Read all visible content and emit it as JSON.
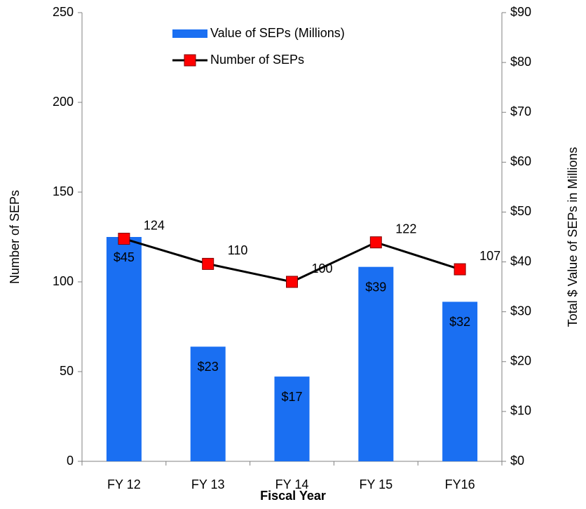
{
  "chart_data": {
    "type": "bar_line",
    "categories": [
      "FY 12",
      "FY 13",
      "FY 14",
      "FY 15",
      "FY16"
    ],
    "x_label": "Fiscal Year",
    "y_label": "Number of SEPs",
    "y2_label": "Total $ Value of SEPs in Millions",
    "series": [
      {
        "name": "Value of SEPs (Millions)",
        "type": "bar",
        "axis": "y2",
        "color": "#1a6ff2",
        "values": [
          45,
          23,
          17,
          39,
          32
        ],
        "value_labels": [
          "$45",
          "$23",
          "$17",
          "$39",
          "$32"
        ]
      },
      {
        "name": "Number of SEPs",
        "type": "line",
        "axis": "y",
        "color": "#000000",
        "marker_color": "#ff0000",
        "values": [
          124,
          110,
          100,
          122,
          107
        ]
      }
    ],
    "ylim": [
      0,
      250
    ],
    "yticks": [
      0,
      50,
      100,
      150,
      200,
      250
    ],
    "y2lim": [
      0,
      90
    ],
    "y2ticks": [
      {
        "value": 0,
        "label": "$0"
      },
      {
        "value": 10,
        "label": "$10"
      },
      {
        "value": 20,
        "label": "$20"
      },
      {
        "value": 30,
        "label": "$30"
      },
      {
        "value": 40,
        "label": "$40"
      },
      {
        "value": 50,
        "label": "$50"
      },
      {
        "value": 60,
        "label": "$60"
      },
      {
        "value": 70,
        "label": "$70"
      },
      {
        "value": 80,
        "label": "$80"
      },
      {
        "value": 90,
        "label": "$90"
      }
    ],
    "grid": false,
    "legend": "top"
  }
}
